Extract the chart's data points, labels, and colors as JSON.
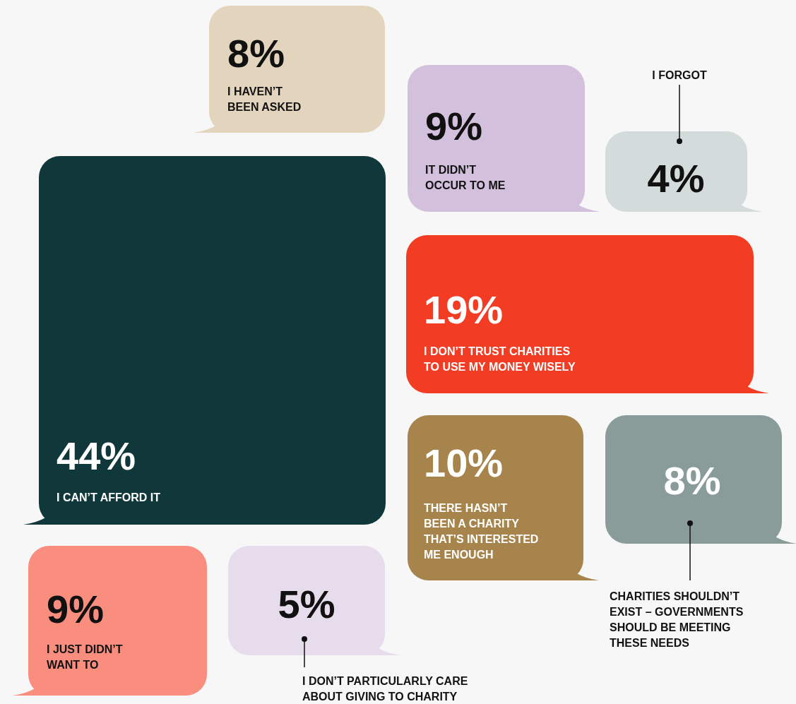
{
  "chart_data": {
    "type": "other",
    "categories": [
      "I HAVEN’T\nBEEN ASKED",
      "IT DIDN’T\nOCCUR TO ME",
      "I FORGOT",
      "I DON’T TRUST CHARITIES\nTO USE MY MONEY WISELY",
      "I CAN’T AFFORD IT",
      "THERE HASN’T\nBEEN A CHARITY\nTHAT’S INTERESTED\nME ENOUGH",
      "CHARITIES SHOULDN’T\nEXIST – GOVERNMENTS\nSHOULD BE MEETING\nTHESE NEEDS",
      "I JUST DIDN’T\nWANT TO",
      "I DON’T PARTICULARLY CARE\nABOUT GIVING TO CHARITY"
    ],
    "values": [
      8,
      9,
      4,
      19,
      44,
      10,
      8,
      9,
      5
    ],
    "value_labels": [
      "8%",
      "9%",
      "4%",
      "19%",
      "44%",
      "10%",
      "8%",
      "9%",
      "5%"
    ],
    "colors": [
      "#e3d5bd",
      "#d2c0dc",
      "#d3dcdb",
      "#f23c24",
      "#10383a",
      "#a7844b",
      "#8a9c9a",
      "#f98d7e",
      "#e6dceb"
    ]
  }
}
